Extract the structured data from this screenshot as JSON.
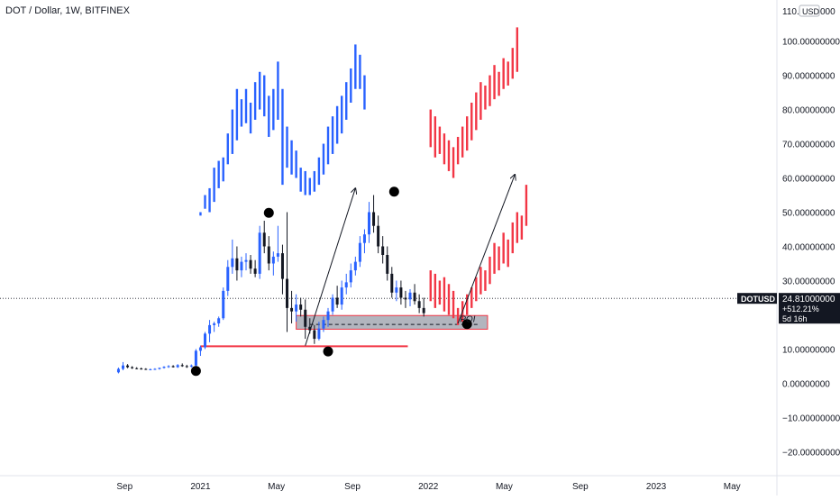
{
  "chart_data": {
    "type": "bar",
    "title": "DOT / Dollar, 1W, BITFINEX",
    "price_axis": {
      "currency_badge": "USD",
      "top_label_prefix": "110.",
      "top_label_suffix": "000",
      "ticks": [
        {
          "value": 100,
          "label": "100.00000000"
        },
        {
          "value": 90,
          "label": "90.00000000"
        },
        {
          "value": 80,
          "label": "80.00000000"
        },
        {
          "value": 70,
          "label": "70.00000000"
        },
        {
          "value": 60,
          "label": "60.00000000"
        },
        {
          "value": 50,
          "label": "50.00000000"
        },
        {
          "value": 40,
          "label": "40.00000000"
        },
        {
          "value": 30,
          "label": "30.00000000"
        },
        {
          "value": 20,
          "label": "20.00000000"
        },
        {
          "value": 10,
          "label": "10.00000000"
        },
        {
          "value": 0,
          "label": "0.00000000"
        },
        {
          "value": -10,
          "label": "−10.00000000"
        },
        {
          "value": -20,
          "label": "−20.00000000"
        }
      ],
      "ylim": [
        -27,
        112
      ]
    },
    "time_axis": {
      "ticks": [
        {
          "t": 2020.667,
          "label": "Sep"
        },
        {
          "t": 2021.0,
          "label": "2021"
        },
        {
          "t": 2021.333,
          "label": "May"
        },
        {
          "t": 2021.667,
          "label": "Sep"
        },
        {
          "t": 2022.0,
          "label": "2022"
        },
        {
          "t": 2022.333,
          "label": "May"
        },
        {
          "t": 2022.667,
          "label": "Sep"
        },
        {
          "t": 2023.0,
          "label": "2023"
        },
        {
          "t": 2023.333,
          "label": "May"
        }
      ],
      "xlim": [
        2020.12,
        2023.53
      ]
    },
    "last_price": {
      "symbol": "DOTUSD",
      "price": 24.81,
      "price_label": "24.81000000",
      "change_label": "+512.21%",
      "countdown": "5d 16h"
    },
    "candles": [
      [
        2020.64,
        3.2,
        4.6,
        2.9,
        4.2
      ],
      [
        2020.66,
        4.2,
        6.2,
        3.8,
        5.2
      ],
      [
        2020.68,
        5.2,
        5.6,
        4.4,
        4.7
      ],
      [
        2020.7,
        4.7,
        5.0,
        4.2,
        4.4
      ],
      [
        2020.72,
        4.4,
        4.7,
        4.1,
        4.3
      ],
      [
        2020.74,
        4.3,
        4.6,
        4.0,
        4.2
      ],
      [
        2020.76,
        4.2,
        4.4,
        3.9,
        4.0
      ],
      [
        2020.78,
        4.0,
        4.3,
        3.8,
        4.1
      ],
      [
        2020.8,
        4.1,
        4.4,
        3.9,
        4.2
      ],
      [
        2020.82,
        4.2,
        4.6,
        4.0,
        4.5
      ],
      [
        2020.84,
        4.5,
        5.0,
        4.3,
        4.8
      ],
      [
        2020.86,
        4.8,
        5.3,
        4.5,
        5.0
      ],
      [
        2020.88,
        5.0,
        5.3,
        4.6,
        4.7
      ],
      [
        2020.9,
        4.7,
        5.6,
        4.5,
        5.3
      ],
      [
        2020.92,
        5.3,
        5.8,
        4.8,
        5.0
      ],
      [
        2020.94,
        5.0,
        5.4,
        4.5,
        4.9
      ],
      [
        2020.96,
        4.9,
        5.5,
        4.6,
        5.2
      ],
      [
        2020.98,
        5.2,
        10.0,
        4.8,
        9.5
      ],
      [
        2021.0,
        9.5,
        11.0,
        8.0,
        10.5
      ],
      [
        2021.02,
        10.5,
        15.0,
        10.0,
        14.5
      ],
      [
        2021.04,
        14.5,
        18.5,
        12.0,
        17.0
      ],
      [
        2021.06,
        17.0,
        18.0,
        15.0,
        17.5
      ],
      [
        2021.08,
        17.5,
        19.5,
        16.5,
        19.0
      ],
      [
        2021.1,
        19.0,
        28.0,
        18.5,
        27.0
      ],
      [
        2021.12,
        27.0,
        36.0,
        25.5,
        34.0
      ],
      [
        2021.14,
        34.0,
        42.0,
        32.0,
        36.5
      ],
      [
        2021.16,
        36.5,
        40.0,
        30.0,
        33.0
      ],
      [
        2021.18,
        33.0,
        37.0,
        31.0,
        35.5
      ],
      [
        2021.2,
        35.5,
        38.0,
        33.0,
        36.0
      ],
      [
        2021.22,
        36.0,
        37.5,
        32.0,
        33.5
      ],
      [
        2021.24,
        33.5,
        36.0,
        31.0,
        32.0
      ],
      [
        2021.26,
        32.0,
        46.0,
        30.5,
        44.0
      ],
      [
        2021.28,
        44.0,
        47.5,
        38.0,
        40.0
      ],
      [
        2021.3,
        40.0,
        43.0,
        33.0,
        35.0
      ],
      [
        2021.32,
        35.0,
        38.5,
        31.5,
        37.0
      ],
      [
        2021.34,
        37.0,
        46.0,
        35.5,
        38.0
      ],
      [
        2021.36,
        38.0,
        40.5,
        26.0,
        30.5
      ],
      [
        2021.38,
        30.5,
        50.0,
        15.0,
        22.0
      ],
      [
        2021.4,
        22.0,
        27.0,
        17.5,
        21.0
      ],
      [
        2021.42,
        21.0,
        26.0,
        18.0,
        23.0
      ],
      [
        2021.44,
        23.0,
        25.0,
        19.5,
        21.5
      ],
      [
        2021.46,
        21.5,
        24.5,
        13.0,
        16.5
      ],
      [
        2021.48,
        16.5,
        19.0,
        14.5,
        15.5
      ],
      [
        2021.5,
        15.5,
        17.0,
        11.5,
        13.0
      ],
      [
        2021.52,
        13.0,
        18.0,
        12.5,
        16.0
      ],
      [
        2021.54,
        16.0,
        19.5,
        15.0,
        18.5
      ],
      [
        2021.56,
        18.5,
        22.0,
        16.5,
        21.0
      ],
      [
        2021.58,
        21.0,
        26.0,
        20.0,
        25.0
      ],
      [
        2021.6,
        25.0,
        28.5,
        22.0,
        23.0
      ],
      [
        2021.62,
        23.0,
        30.0,
        21.5,
        28.0
      ],
      [
        2021.64,
        28.0,
        32.0,
        26.0,
        29.5
      ],
      [
        2021.66,
        29.5,
        35.0,
        28.0,
        33.0
      ],
      [
        2021.68,
        33.0,
        37.0,
        31.5,
        35.5
      ],
      [
        2021.7,
        35.5,
        43.0,
        34.0,
        41.0
      ],
      [
        2021.72,
        41.0,
        45.0,
        38.0,
        43.5
      ],
      [
        2021.74,
        43.5,
        53.0,
        41.0,
        50.0
      ],
      [
        2021.76,
        50.0,
        55.0,
        44.0,
        46.0
      ],
      [
        2021.78,
        46.0,
        49.0,
        38.0,
        40.0
      ],
      [
        2021.8,
        40.0,
        43.0,
        35.0,
        37.5
      ],
      [
        2021.82,
        37.5,
        40.0,
        30.0,
        32.0
      ],
      [
        2021.84,
        32.0,
        34.0,
        25.0,
        26.5
      ],
      [
        2021.86,
        26.5,
        30.0,
        24.0,
        28.0
      ],
      [
        2021.88,
        28.0,
        30.0,
        23.0,
        25.0
      ],
      [
        2021.9,
        25.0,
        27.0,
        22.0,
        24.5
      ],
      [
        2021.92,
        24.5,
        27.5,
        22.5,
        26.5
      ],
      [
        2021.94,
        26.5,
        29.0,
        23.0,
        24.0
      ],
      [
        2021.96,
        24.0,
        26.0,
        20.5,
        22.0
      ],
      [
        2021.98,
        22.0,
        25.0,
        19.5,
        20.5
      ]
    ],
    "projections": [
      {
        "dir": "down",
        "bars": [
          [
            2022.01,
            33,
            24
          ],
          [
            2022.03,
            32,
            22
          ],
          [
            2022.05,
            30,
            23
          ],
          [
            2022.07,
            31,
            21
          ],
          [
            2022.09,
            29,
            20
          ],
          [
            2022.11,
            27,
            19
          ]
        ]
      },
      {
        "dir": "up",
        "bars": [
          [
            2022.13,
            22,
            17
          ],
          [
            2022.15,
            24,
            18
          ],
          [
            2022.17,
            26,
            20
          ],
          [
            2022.19,
            28,
            22
          ],
          [
            2022.21,
            31,
            24
          ],
          [
            2022.23,
            34,
            26
          ],
          [
            2022.25,
            33,
            27
          ],
          [
            2022.27,
            37,
            29
          ],
          [
            2022.29,
            41,
            32
          ],
          [
            2022.31,
            40,
            33
          ],
          [
            2022.33,
            44,
            35
          ],
          [
            2022.35,
            42,
            34
          ],
          [
            2022.37,
            47,
            38
          ],
          [
            2022.39,
            50,
            41
          ],
          [
            2022.41,
            49,
            42
          ],
          [
            2022.43,
            58,
            46
          ]
        ]
      },
      {
        "dir": "down",
        "bars": [
          [
            2022.01,
            80,
            69
          ],
          [
            2022.03,
            78,
            66
          ],
          [
            2022.05,
            75,
            67
          ],
          [
            2022.07,
            73,
            64
          ],
          [
            2022.09,
            71,
            62
          ],
          [
            2022.11,
            69,
            60
          ]
        ]
      },
      {
        "dir": "up",
        "bars": [
          [
            2022.13,
            72,
            64
          ],
          [
            2022.15,
            75,
            66
          ],
          [
            2022.17,
            78,
            68
          ],
          [
            2022.19,
            82,
            71
          ],
          [
            2022.21,
            85,
            74
          ],
          [
            2022.23,
            88,
            77
          ],
          [
            2022.25,
            87,
            80
          ],
          [
            2022.27,
            90,
            81
          ],
          [
            2022.29,
            93,
            83
          ],
          [
            2022.31,
            91,
            84
          ],
          [
            2022.33,
            95,
            86
          ],
          [
            2022.35,
            94,
            87
          ],
          [
            2022.37,
            98,
            89
          ],
          [
            2022.39,
            104,
            91
          ]
        ]
      }
    ],
    "fractal_copy": {
      "color": "blue",
      "bars": [
        [
          2021.0,
          50,
          49
        ],
        [
          2021.02,
          55,
          51
        ],
        [
          2021.04,
          57,
          50
        ],
        [
          2021.06,
          63,
          53
        ],
        [
          2021.08,
          65,
          57
        ],
        [
          2021.1,
          66,
          59
        ],
        [
          2021.12,
          73,
          64
        ],
        [
          2021.14,
          80,
          67
        ],
        [
          2021.16,
          86,
          71
        ],
        [
          2021.18,
          83,
          75
        ],
        [
          2021.2,
          86,
          76
        ],
        [
          2021.22,
          82,
          73
        ],
        [
          2021.24,
          88,
          77
        ],
        [
          2021.26,
          91,
          80
        ],
        [
          2021.28,
          90,
          78
        ],
        [
          2021.3,
          84,
          72
        ],
        [
          2021.32,
          86,
          74
        ],
        [
          2021.34,
          94,
          77
        ],
        [
          2021.36,
          86,
          58
        ],
        [
          2021.38,
          75,
          63
        ],
        [
          2021.4,
          71,
          61
        ],
        [
          2021.42,
          68,
          60
        ],
        [
          2021.44,
          63,
          56
        ],
        [
          2021.46,
          62,
          55
        ],
        [
          2021.48,
          60,
          55
        ],
        [
          2021.5,
          62,
          56
        ],
        [
          2021.52,
          66,
          58
        ],
        [
          2021.54,
          70,
          61
        ],
        [
          2021.56,
          75,
          64
        ],
        [
          2021.58,
          78,
          67
        ],
        [
          2021.6,
          81,
          70
        ],
        [
          2021.62,
          84,
          73
        ],
        [
          2021.64,
          88,
          77
        ],
        [
          2021.66,
          92,
          82
        ],
        [
          2021.68,
          99,
          86
        ],
        [
          2021.7,
          96,
          86
        ],
        [
          2021.72,
          90,
          80
        ]
      ]
    },
    "annotations": {
      "support_zone": {
        "t0": 2021.42,
        "t1": 2022.26,
        "top": 19.8,
        "bottom": 15.8
      },
      "support_line": {
        "t0": 2021.0,
        "t1": 2021.91,
        "value": 10.8
      },
      "dashed_level": {
        "t0": 2021.48,
        "t1": 2022.22,
        "value": 17.2
      },
      "poi_label": "POI",
      "poi_point": {
        "t": 2022.17,
        "v": 17.9
      },
      "pivots": [
        {
          "t": 2020.98,
          "v": 3.6
        },
        {
          "t": 2021.3,
          "v": 49.8
        },
        {
          "t": 2021.56,
          "v": 9.3
        },
        {
          "t": 2021.85,
          "v": 56.0
        },
        {
          "t": 2022.17,
          "v": 17.3
        }
      ],
      "arrows": [
        {
          "t0": 2021.46,
          "v0": 11.0,
          "t1": 2021.68,
          "v1": 57.0
        },
        {
          "t0": 2022.13,
          "v0": 17.5,
          "t1": 2022.38,
          "v1": 61.0
        }
      ]
    }
  }
}
